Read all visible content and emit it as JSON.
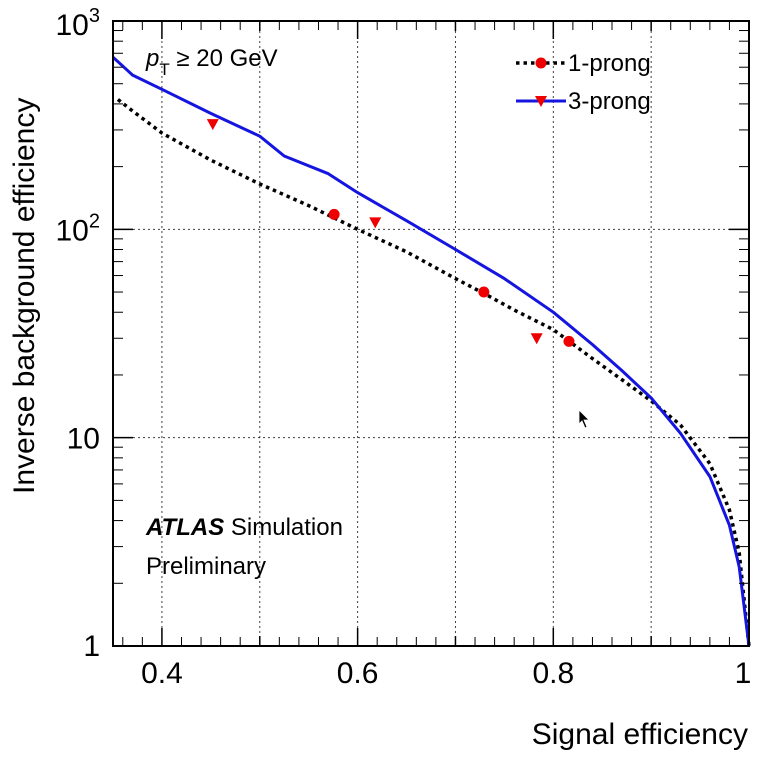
{
  "chart_data": {
    "type": "line",
    "title": "",
    "xlabel": "Signal efficiency",
    "ylabel": "Inverse background efficiency",
    "xlim": [
      0.35,
      1.0
    ],
    "ylim": [
      1,
      1000
    ],
    "yscale": "log",
    "grid": true,
    "legend_position": "top-right",
    "x_ticks": [
      {
        "value": 0.4,
        "label": "0.4"
      },
      {
        "value": 0.6,
        "label": "0.6"
      },
      {
        "value": 0.8,
        "label": "0.8"
      },
      {
        "value": 1.0,
        "label": "1"
      }
    ],
    "y_ticks": [
      {
        "value": 1,
        "label": "1",
        "exp": ""
      },
      {
        "value": 10,
        "label": "10",
        "exp": ""
      },
      {
        "value": 100,
        "label": "10",
        "exp": "2"
      },
      {
        "value": 1000,
        "label": "10",
        "exp": "3"
      }
    ],
    "series": [
      {
        "name": "1-prong",
        "color": "#000000",
        "marker_color": "#ee0000",
        "marker": "circle",
        "line_style": "dotted",
        "x": [
          0.355,
          0.37,
          0.4,
          0.45,
          0.5,
          0.55,
          0.6,
          0.65,
          0.7,
          0.73,
          0.76,
          0.8,
          0.84,
          0.87,
          0.9,
          0.93,
          0.96,
          0.98,
          0.99,
          1.0
        ],
        "y": [
          420,
          370,
          290,
          215,
          165,
          130,
          100,
          78,
          58,
          49,
          41,
          33,
          24,
          19,
          15,
          11.5,
          7.5,
          4.5,
          2.8,
          1
        ],
        "points": [
          {
            "x": 0.576,
            "y": 118
          },
          {
            "x": 0.729,
            "y": 50
          },
          {
            "x": 0.816,
            "y": 29
          }
        ]
      },
      {
        "name": "3-prong",
        "color": "#1515e0",
        "marker_color": "#ee0000",
        "marker": "triangle-down",
        "line_style": "solid",
        "x": [
          0.35,
          0.37,
          0.4,
          0.45,
          0.5,
          0.525,
          0.57,
          0.6,
          0.65,
          0.7,
          0.75,
          0.8,
          0.84,
          0.87,
          0.9,
          0.93,
          0.96,
          0.98,
          0.99,
          1.0
        ],
        "y": [
          670,
          550,
          470,
          360,
          280,
          225,
          185,
          150,
          110,
          80,
          58,
          40,
          28,
          21,
          15.5,
          10.5,
          6.5,
          3.8,
          2.4,
          1
        ],
        "points": [
          {
            "x": 0.452,
            "y": 320
          },
          {
            "x": 0.618,
            "y": 108
          },
          {
            "x": 0.783,
            "y": 30
          }
        ]
      }
    ],
    "annotations": {
      "pt_label": "p",
      "pt_sub": "T",
      "pt_rest": " ≥ 20 GeV",
      "atlas": "ATLAS",
      "atlas_rest": " Simulation",
      "preliminary": "Preliminary"
    }
  }
}
